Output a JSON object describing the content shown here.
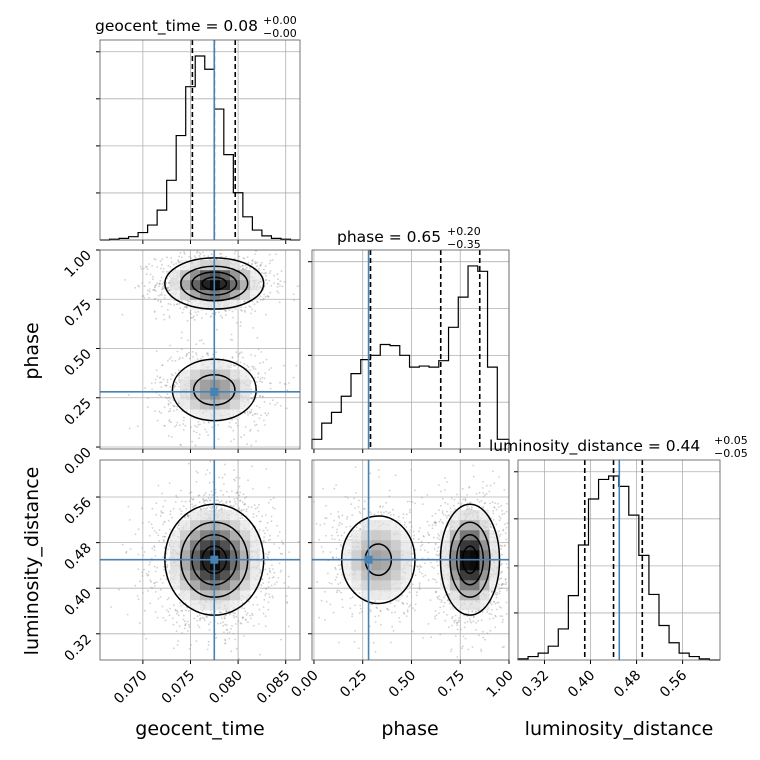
{
  "chart_data": {
    "type": "corner",
    "colors": {
      "truth": "#4682b4",
      "hist": "#000000",
      "grid": "#b0b0b0",
      "scatter": "#9a9a9a"
    },
    "truth": {
      "geocent_time": 0.0775,
      "phase": 0.28,
      "luminosity_distance": 0.45
    },
    "parameters": [
      {
        "name": "geocent_time",
        "xlabel": "geocent_time",
        "title_text": "geocent_time = 0.08",
        "title_sup": "+0.00",
        "title_sub": "−0.00",
        "range": [
          0.0655,
          0.0865
        ],
        "ticks": [
          0.07,
          0.075,
          0.08,
          0.085
        ],
        "tick_labels": [
          "0.070",
          "0.075",
          "0.080",
          "0.085"
        ],
        "quantiles": [
          0.0752,
          0.0775,
          0.0797
        ],
        "bins": [
          0.0655,
          0.0665,
          0.0675,
          0.0685,
          0.0695,
          0.0705,
          0.0715,
          0.0725,
          0.0735,
          0.0745,
          0.0755,
          0.0765,
          0.0775,
          0.0785,
          0.0795,
          0.0805,
          0.0815,
          0.0825,
          0.0835,
          0.0845,
          0.0855,
          0.0865
        ],
        "hist": [
          0,
          1,
          2,
          4,
          9,
          18,
          36,
          72,
          126,
          185,
          222,
          206,
          158,
          103,
          57,
          28,
          12,
          5,
          2,
          1,
          0
        ]
      },
      {
        "name": "phase",
        "xlabel": "phase",
        "title_text": "phase = 0.65",
        "title_sup": "+0.20",
        "title_sub": "−0.35",
        "range": [
          -0.01,
          1.0
        ],
        "ticks": [
          0.0,
          0.25,
          0.5,
          0.75,
          1.0
        ],
        "tick_labels": [
          "0.00",
          "0.25",
          "0.50",
          "0.75",
          "1.00"
        ],
        "quantiles": [
          0.29,
          0.65,
          0.85
        ],
        "bins": [
          -0.01,
          0.04,
          0.09,
          0.14,
          0.19,
          0.24,
          0.29,
          0.34,
          0.39,
          0.44,
          0.49,
          0.54,
          0.59,
          0.64,
          0.69,
          0.74,
          0.79,
          0.84,
          0.89,
          0.94,
          1.0
        ],
        "hist": [
          9,
          24,
          34,
          49,
          70,
          83,
          87,
          97,
          96,
          87,
          76,
          77,
          76,
          82,
          113,
          141,
          170,
          165,
          76,
          9
        ]
      },
      {
        "name": "luminosity_distance",
        "xlabel": "luminosity_distance",
        "title_text": "luminosity_distance = 0.44",
        "title_sup": "+0.05",
        "title_sub": "−0.05",
        "range": [
          0.274,
          0.625
        ],
        "ticks": [
          0.32,
          0.4,
          0.48,
          0.56
        ],
        "tick_labels": [
          "0.32",
          "0.40",
          "0.48",
          "0.56"
        ],
        "quantiles": [
          0.39,
          0.44,
          0.49
        ],
        "bins": [
          0.274,
          0.2915,
          0.309,
          0.3265,
          0.344,
          0.3615,
          0.379,
          0.3965,
          0.414,
          0.4315,
          0.449,
          0.4665,
          0.484,
          0.5015,
          0.519,
          0.5365,
          0.554,
          0.5715,
          0.589,
          0.6065,
          0.625
        ],
        "hist": [
          1,
          3,
          6,
          12,
          27,
          56,
          100,
          140,
          157,
          160,
          151,
          126,
          91,
          57,
          30,
          15,
          6,
          3,
          1,
          0
        ]
      }
    ],
    "diag_tick_count": 4,
    "panels_2d": [
      {
        "x": "geocent_time",
        "y": "phase",
        "density": [
          [
            0.0775,
            0.83,
            1.0,
            0.0024,
            0.06
          ],
          [
            0.0775,
            0.29,
            0.55,
            0.0024,
            0.085
          ]
        ]
      },
      {
        "x": "geocent_time",
        "y": "luminosity_distance",
        "density": [
          [
            0.0775,
            0.45,
            1.0,
            0.0024,
            0.045
          ]
        ]
      },
      {
        "x": "phase",
        "y": "luminosity_distance",
        "density": [
          [
            0.8,
            0.45,
            1.0,
            0.07,
            0.045
          ],
          [
            0.33,
            0.45,
            0.45,
            0.11,
            0.045
          ]
        ]
      }
    ]
  }
}
